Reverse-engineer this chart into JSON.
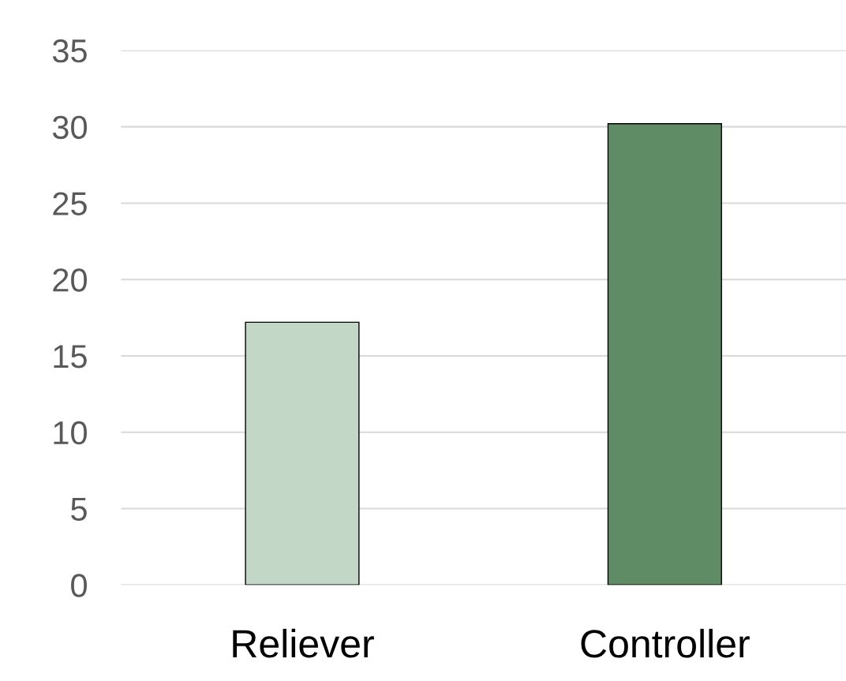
{
  "chart_data": {
    "type": "bar",
    "categories": [
      "Reliever",
      "Controller"
    ],
    "values": [
      17.2,
      30.2
    ],
    "colors": [
      "#c3d7c7",
      "#5f8c65"
    ],
    "ylim": [
      0,
      35
    ],
    "yticks": [
      0,
      5,
      10,
      15,
      20,
      25,
      30,
      35
    ],
    "grid": "y",
    "legend": false
  }
}
